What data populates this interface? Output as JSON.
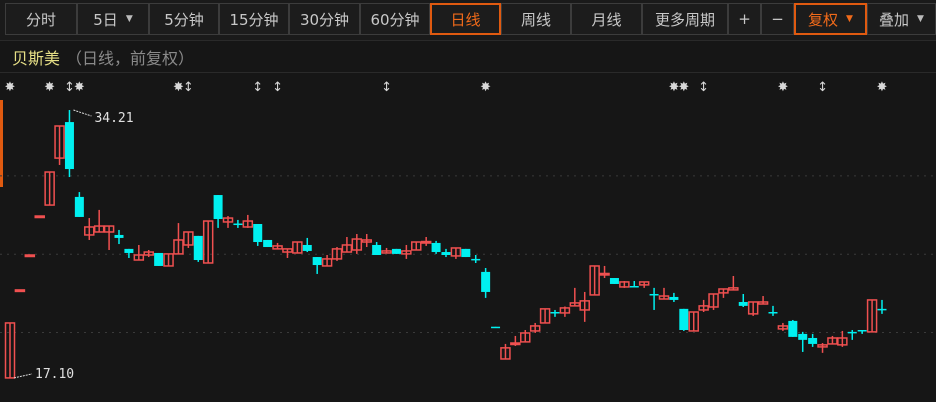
{
  "toolbar": {
    "buttons": [
      {
        "label": "分时",
        "active": false,
        "caret": false
      },
      {
        "label": "5日",
        "active": false,
        "caret": true
      },
      {
        "label": "5分钟",
        "active": false,
        "caret": false
      },
      {
        "label": "15分钟",
        "active": false,
        "caret": false
      },
      {
        "label": "30分钟",
        "active": false,
        "caret": false
      },
      {
        "label": "60分钟",
        "active": false,
        "caret": false
      },
      {
        "label": "日线",
        "active": true,
        "caret": false
      },
      {
        "label": "周线",
        "active": false,
        "caret": false
      },
      {
        "label": "月线",
        "active": false,
        "caret": false
      },
      {
        "label": "更多周期",
        "active": false,
        "caret": false
      },
      {
        "label": "+",
        "active": false,
        "caret": false
      },
      {
        "label": "−",
        "active": false,
        "caret": false
      },
      {
        "label": "复权",
        "active": true,
        "caret": true
      },
      {
        "label": "叠加",
        "active": false,
        "caret": true
      }
    ],
    "accent_color": "#e05a10"
  },
  "header": {
    "stock_name": "贝斯美",
    "subtitle": "（日线，前复权）"
  },
  "chart_data": {
    "type": "candlestick",
    "ylim": [
      16.2,
      34.85
    ],
    "grid_y": [
      20,
      25,
      30
    ],
    "grid": "dotted horizontal",
    "up_color": "#f05050",
    "down_color": "#00f0f0",
    "annotations": [
      {
        "label": "34.21",
        "candle": 6,
        "price": 34.21
      },
      {
        "label": "17.10",
        "candle": 0,
        "price": 17.1
      }
    ],
    "markers": [
      {
        "candle": 0,
        "icon": "star"
      },
      {
        "candle": 4,
        "icon": "star"
      },
      {
        "candle": 6,
        "icon": "arrow-updown"
      },
      {
        "candle": 7,
        "icon": "star"
      },
      {
        "candle": 17,
        "icon": "star"
      },
      {
        "candle": 18,
        "icon": "arrow-updown"
      },
      {
        "candle": 25,
        "icon": "arrow-updown"
      },
      {
        "candle": 27,
        "icon": "arrow-updown"
      },
      {
        "candle": 38,
        "icon": "arrow-updown"
      },
      {
        "candle": 48,
        "icon": "star"
      },
      {
        "candle": 67,
        "icon": "star"
      },
      {
        "candle": 68,
        "icon": "star"
      },
      {
        "candle": 70,
        "icon": "arrow-updown"
      },
      {
        "candle": 78,
        "icon": "star"
      },
      {
        "candle": 82,
        "icon": "arrow-updown"
      },
      {
        "candle": 88,
        "icon": "star"
      }
    ],
    "ohlc": [
      [
        17.1,
        20.61,
        17.1,
        20.61
      ],
      [
        22.72,
        22.72,
        22.72,
        22.72
      ],
      [
        24.95,
        24.95,
        24.95,
        24.95
      ],
      [
        27.44,
        27.44,
        27.44,
        27.44
      ],
      [
        28.14,
        30.25,
        28.14,
        30.25
      ],
      [
        31.14,
        33.19,
        30.7,
        33.19
      ],
      [
        33.44,
        34.21,
        29.93,
        30.44
      ],
      [
        28.66,
        28.97,
        27.38,
        27.38
      ],
      [
        26.23,
        27.31,
        25.91,
        26.74
      ],
      [
        26.42,
        27.83,
        26.42,
        26.8
      ],
      [
        26.42,
        26.8,
        25.27,
        26.8
      ],
      [
        26.23,
        26.55,
        25.65,
        26.04
      ],
      [
        25.34,
        25.34,
        24.76,
        25.08
      ],
      [
        24.63,
        25.59,
        24.63,
        24.95
      ],
      [
        24.95,
        25.27,
        24.82,
        25.14
      ],
      [
        25.08,
        25.08,
        24.25,
        24.25
      ],
      [
        24.25,
        25.02,
        24.25,
        25.02
      ],
      [
        25.02,
        26.99,
        25.02,
        25.91
      ],
      [
        25.59,
        26.42,
        25.4,
        26.42
      ],
      [
        26.17,
        26.17,
        24.51,
        24.63
      ],
      [
        24.44,
        27.12,
        24.44,
        27.12
      ],
      [
        28.78,
        28.78,
        26.68,
        27.25
      ],
      [
        27.06,
        27.44,
        26.68,
        27.31
      ],
      [
        26.96,
        27.19,
        26.68,
        26.93
      ],
      [
        26.74,
        27.51,
        26.68,
        27.12
      ],
      [
        26.93,
        26.93,
        25.53,
        25.78
      ],
      [
        25.91,
        25.91,
        25.46,
        25.46
      ],
      [
        25.34,
        25.72,
        25.34,
        25.53
      ],
      [
        25.14,
        25.34,
        24.76,
        25.34
      ],
      [
        25.08,
        25.78,
        25.08,
        25.78
      ],
      [
        25.59,
        26.04,
        25.14,
        25.21
      ],
      [
        24.82,
        24.82,
        23.74,
        24.31
      ],
      [
        24.25,
        24.95,
        24.25,
        24.7
      ],
      [
        24.7,
        25.46,
        24.57,
        25.34
      ],
      [
        25.14,
        26.1,
        25.14,
        25.59
      ],
      [
        25.27,
        26.29,
        25.02,
        25.97
      ],
      [
        25.78,
        26.29,
        25.46,
        25.91
      ],
      [
        25.59,
        25.78,
        24.95,
        24.95
      ],
      [
        25.08,
        25.4,
        25.08,
        25.21
      ],
      [
        25.34,
        25.34,
        25.02,
        25.02
      ],
      [
        25.02,
        25.59,
        24.7,
        25.21
      ],
      [
        25.27,
        25.78,
        25.27,
        25.78
      ],
      [
        25.75,
        26.1,
        25.53,
        25.81
      ],
      [
        25.72,
        25.85,
        25.02,
        25.14
      ],
      [
        25.14,
        25.34,
        24.82,
        24.95
      ],
      [
        24.89,
        25.4,
        24.7,
        25.4
      ],
      [
        25.34,
        25.34,
        24.82,
        24.82
      ],
      [
        24.7,
        24.95,
        24.44,
        24.63
      ],
      [
        23.87,
        24.12,
        22.21,
        22.59
      ],
      [
        20.37,
        20.37,
        20.36,
        20.36
      ],
      [
        18.31,
        19.27,
        18.31,
        19.02
      ],
      [
        19.24,
        19.78,
        19.14,
        19.33
      ],
      [
        19.4,
        20.16,
        19.4,
        19.97
      ],
      [
        20.1,
        20.61,
        19.97,
        20.42
      ],
      [
        20.61,
        21.51,
        20.61,
        21.51
      ],
      [
        21.31,
        21.44,
        21.0,
        21.28
      ],
      [
        21.25,
        21.66,
        21.0,
        21.57
      ],
      [
        21.7,
        22.85,
        21.7,
        21.89
      ],
      [
        21.44,
        22.59,
        20.68,
        22.02
      ],
      [
        22.4,
        24.25,
        22.4,
        24.25
      ],
      [
        23.71,
        24.25,
        23.48,
        23.77
      ],
      [
        23.48,
        23.48,
        23.1,
        23.1
      ],
      [
        22.91,
        23.29,
        22.85,
        23.23
      ],
      [
        22.97,
        23.29,
        22.94,
        22.94
      ],
      [
        23.04,
        23.23,
        22.85,
        23.23
      ],
      [
        22.46,
        22.85,
        21.44,
        22.43
      ],
      [
        22.14,
        22.85,
        22.14,
        22.33
      ],
      [
        22.27,
        22.53,
        21.95,
        22.08
      ],
      [
        21.51,
        21.51,
        20.1,
        20.16
      ],
      [
        20.1,
        21.31,
        20.1,
        21.31
      ],
      [
        21.44,
        22.08,
        21.31,
        21.7
      ],
      [
        21.63,
        22.46,
        21.44,
        22.46
      ],
      [
        22.53,
        22.78,
        22.21,
        22.78
      ],
      [
        22.72,
        23.61,
        22.72,
        22.85
      ],
      [
        21.95,
        22.46,
        21.63,
        21.7
      ],
      [
        21.19,
        21.95,
        21.06,
        21.95
      ],
      [
        21.82,
        22.33,
        21.82,
        21.95
      ],
      [
        21.31,
        21.7,
        21.06,
        21.28
      ],
      [
        20.23,
        20.61,
        20.1,
        20.42
      ],
      [
        20.74,
        20.8,
        19.72,
        19.72
      ],
      [
        19.91,
        20.04,
        18.76,
        19.53
      ],
      [
        19.65,
        19.91,
        19.08,
        19.27
      ],
      [
        19.08,
        19.33,
        18.7,
        19.21
      ],
      [
        19.27,
        19.78,
        19.27,
        19.65
      ],
      [
        19.21,
        20.1,
        19.08,
        19.65
      ],
      [
        20.04,
        20.16,
        19.53,
        20.0
      ],
      [
        20.16,
        20.16,
        19.91,
        20.13
      ],
      [
        20.04,
        22.08,
        20.04,
        22.08
      ],
      [
        21.51,
        22.08,
        21.19,
        21.48
      ]
    ]
  }
}
